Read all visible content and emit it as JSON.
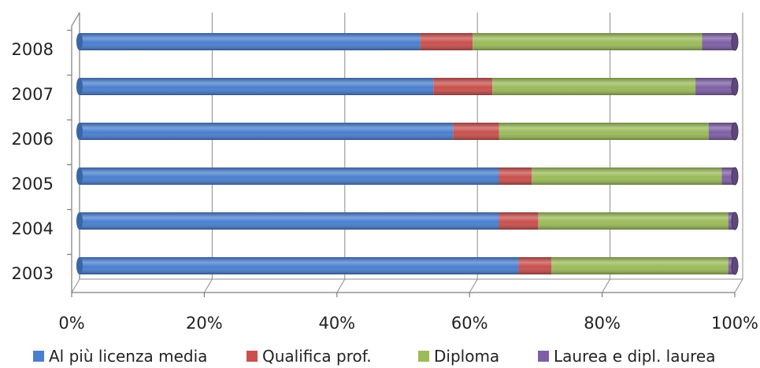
{
  "chart_data": {
    "type": "bar",
    "orientation": "horizontal",
    "stacked": "percent",
    "style": "3d-cylinder",
    "categories": [
      "2008",
      "2007",
      "2006",
      "2005",
      "2004",
      "2003"
    ],
    "series": [
      {
        "name": "Al più licenza media",
        "color": "#4a7fd0",
        "values": [
          52,
          54,
          57,
          64,
          64,
          67
        ]
      },
      {
        "name": "Qualifica prof.",
        "color": "#c9504d",
        "values": [
          8,
          9,
          7,
          5,
          6,
          5
        ]
      },
      {
        "name": "Diploma",
        "color": "#9bbb59",
        "values": [
          35,
          31,
          32,
          29,
          29,
          27
        ]
      },
      {
        "name": "Laurea e dipl. laurea",
        "color": "#7e5fa5",
        "values": [
          5,
          6,
          4,
          2,
          1,
          1
        ]
      }
    ],
    "x_ticks": [
      "0%",
      "20%",
      "40%",
      "60%",
      "80%",
      "100%"
    ],
    "xlim": [
      0,
      100
    ],
    "grid": "vertical",
    "legend_position": "bottom"
  }
}
